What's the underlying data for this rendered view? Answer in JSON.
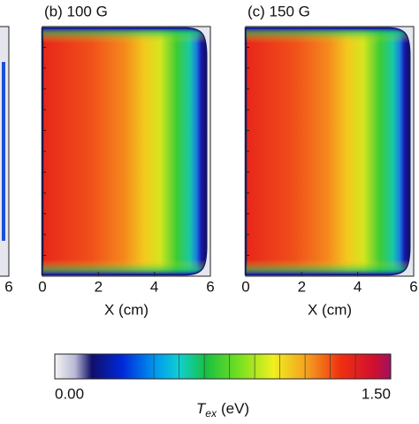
{
  "chart_data": [
    {
      "type": "heatmap",
      "title": "(b) 100 G",
      "x_label": "X (cm)",
      "xlim": [
        0,
        6
      ],
      "xticks": [
        0,
        2,
        4,
        6
      ]
    },
    {
      "type": "heatmap",
      "title": "(c) 150 G",
      "x_label": "X (cm)",
      "xlim": [
        0,
        6
      ],
      "xticks": [
        0,
        2,
        4,
        6
      ]
    }
  ],
  "cropped_panel": {
    "xlim": [
      0,
      6
    ],
    "xticks": [
      6
    ]
  },
  "colorbar": {
    "clim": [
      0,
      1.5
    ],
    "ticks": [
      {
        "value": 0,
        "label": "0.00"
      },
      {
        "value": 1.5,
        "label": "1.50"
      }
    ],
    "label": {
      "symbol": "T",
      "subscript": "ex",
      "unit": "(eV)"
    }
  }
}
